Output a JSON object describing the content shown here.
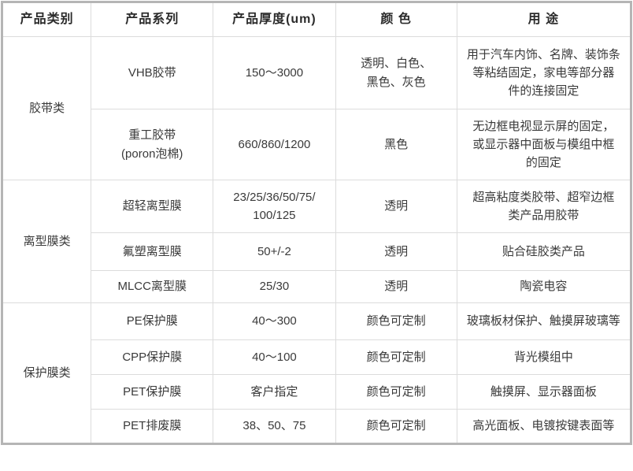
{
  "table": {
    "headers": [
      "产品类别",
      "产品系列",
      "产品厚度(um)",
      "颜 色",
      "用 途"
    ],
    "groups": [
      {
        "category": "胶带类",
        "rows": [
          {
            "series": "VHB胶带",
            "thickness": "150～3000",
            "color": "透明、白色、\n黑色、灰色",
            "usage": "用于汽车内饰、名牌、装饰条\n等粘结固定，家电等部分器\n件的连接固定"
          },
          {
            "series": "重工胶带\n(poron泡棉)",
            "thickness": "660/860/1200",
            "color": "黑色",
            "usage": "无边框电视显示屏的固定，\n或显示器中面板与模组中框\n的固定"
          }
        ]
      },
      {
        "category": "离型膜类",
        "rows": [
          {
            "series": "超轻离型膜",
            "thickness": "23/25/36/50/75/\n100/125",
            "color": "透明",
            "usage": "超高粘度类胶带、超窄边框\n类产品用胶带"
          },
          {
            "series": "氟塑离型膜",
            "thickness": "50+/-2",
            "color": "透明",
            "usage": "贴合硅胶类产品"
          },
          {
            "series": "MLCC离型膜",
            "thickness": "25/30",
            "color": "透明",
            "usage": "陶瓷电容"
          }
        ]
      },
      {
        "category": "保护膜类",
        "rows": [
          {
            "series": "PE保护膜",
            "thickness": "40～300",
            "color": "颜色可定制",
            "usage": "玻璃板材保护、触摸屏玻璃等"
          },
          {
            "series": "CPP保护膜",
            "thickness": "40～100",
            "color": "颜色可定制",
            "usage": "背光模组中"
          },
          {
            "series": "PET保护膜",
            "thickness": "客户指定",
            "color": "颜色可定制",
            "usage": "触摸屏、显示器面板"
          },
          {
            "series": "PET排废膜",
            "thickness": "38、50、75",
            "color": "颜色可定制",
            "usage": "高光面板、电镀按键表面等"
          }
        ]
      }
    ],
    "colors": {
      "body_text": "#3a3a3a",
      "header_text": "#2b2b2b",
      "inner_border": "#dcdcdc",
      "outer_border": "#b5b5b5",
      "background": "#ffffff"
    }
  }
}
